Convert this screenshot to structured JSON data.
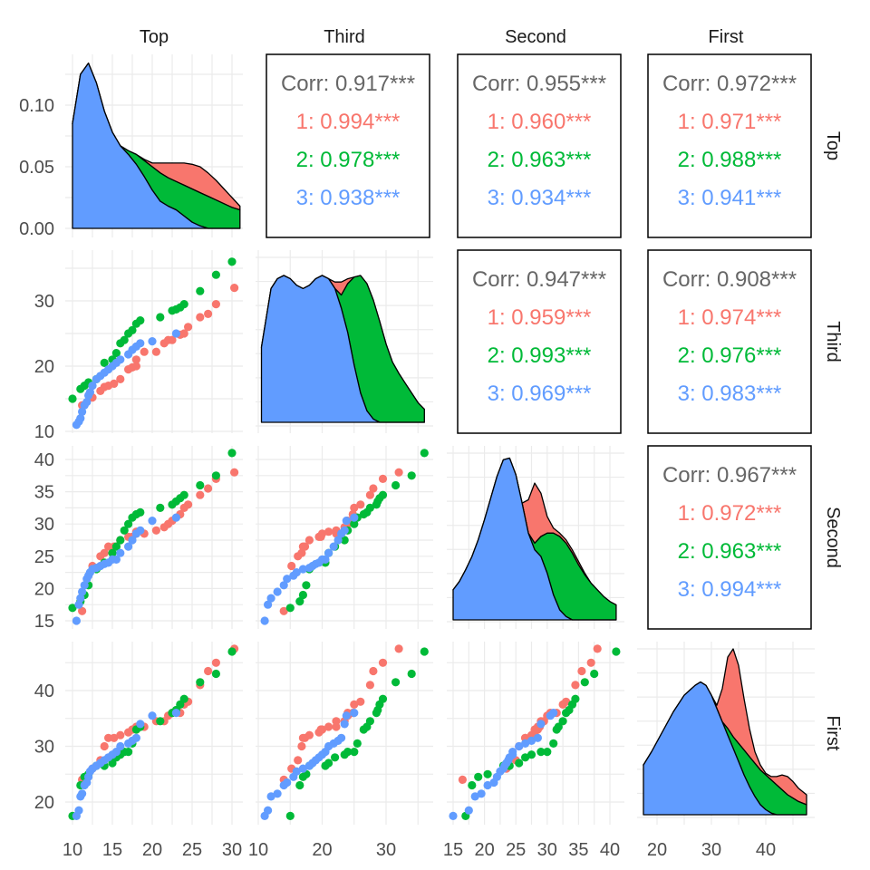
{
  "chart_data": {
    "type": "scatter",
    "title": "",
    "description": "Pairs plot (scatterplot matrix) of four variables colored by group, with stacked densities on the diagonal and correlation text in upper panels",
    "variables": [
      "Top",
      "Third",
      "Second",
      "First"
    ],
    "groups": [
      {
        "name": "1",
        "color": "#F8766D"
      },
      {
        "name": "2",
        "color": "#00BA38"
      },
      {
        "name": "3",
        "color": "#619CFF"
      }
    ],
    "axes": {
      "Top": {
        "range": [
          9.5,
          31.5
        ],
        "ticks": [
          10,
          15,
          20,
          25,
          30
        ]
      },
      "Third": {
        "range": [
          8.5,
          36.5
        ],
        "ticks": [
          10,
          20,
          30
        ]
      },
      "Second": {
        "range": [
          14,
          42
        ],
        "ticks": [
          15,
          20,
          25,
          30,
          35,
          40
        ]
      },
      "First": {
        "range": [
          16,
          49
        ],
        "ticks": [
          20,
          30,
          40
        ]
      }
    },
    "density_axis": {
      "label_ticks": [
        "0.00",
        "0.05",
        "0.10"
      ],
      "values": [
        0,
        0.05,
        0.1
      ],
      "range": [
        0,
        0.145
      ]
    },
    "correlations": [
      {
        "row": "Top",
        "col": "Third",
        "overall": "Corr: 0.917***",
        "groups": [
          "1: 0.994***",
          "2: 0.978***",
          "3: 0.938***"
        ]
      },
      {
        "row": "Top",
        "col": "Second",
        "overall": "Corr: 0.955***",
        "groups": [
          "1: 0.960***",
          "2: 0.963***",
          "3: 0.934***"
        ]
      },
      {
        "row": "Top",
        "col": "First",
        "overall": "Corr: 0.972***",
        "groups": [
          "1: 0.971***",
          "2: 0.988***",
          "3: 0.941***"
        ]
      },
      {
        "row": "Third",
        "col": "Second",
        "overall": "Corr: 0.947***",
        "groups": [
          "1: 0.959***",
          "2: 0.993***",
          "3: 0.969***"
        ]
      },
      {
        "row": "Third",
        "col": "First",
        "overall": "Corr: 0.908***",
        "groups": [
          "1: 0.974***",
          "2: 0.976***",
          "3: 0.983***"
        ]
      },
      {
        "row": "Second",
        "col": "First",
        "overall": "Corr: 0.967***",
        "groups": [
          "1: 0.972***",
          "2: 0.963***",
          "3: 0.994***"
        ]
      }
    ],
    "points": {
      "1": [
        [
          11.2,
          14.0,
          16.5,
          24.0
        ],
        [
          12.5,
          15.2,
          23.5,
          26.0
        ],
        [
          13.5,
          16.2,
          25.0,
          27.5
        ],
        [
          14.0,
          16.8,
          25.5,
          30.0
        ],
        [
          14.5,
          17.0,
          26.5,
          31.5
        ],
        [
          15.2,
          17.3,
          26.5,
          31.5
        ],
        [
          16.0,
          18.0,
          27.5,
          32.0
        ],
        [
          17.0,
          19.5,
          28.0,
          32.5
        ],
        [
          17.5,
          19.8,
          28.0,
          33.0
        ],
        [
          18.0,
          20.0,
          28.5,
          33.0
        ],
        [
          18.0,
          21.0,
          28.8,
          33.5
        ],
        [
          19.0,
          22.2,
          28.5,
          33.5
        ],
        [
          20.5,
          22.2,
          29.0,
          34.5
        ],
        [
          21.5,
          23.5,
          29.5,
          34.5
        ],
        [
          22.0,
          24.0,
          30.0,
          35.5
        ],
        [
          22.5,
          24.0,
          30.5,
          36.0
        ],
        [
          23.5,
          24.8,
          31.5,
          36.0
        ],
        [
          24.0,
          25.0,
          32.5,
          37.5
        ],
        [
          24.5,
          26.0,
          33.0,
          38.0
        ],
        [
          26.0,
          27.5,
          34.5,
          41.0
        ],
        [
          27.0,
          28.0,
          35.5,
          43.5
        ],
        [
          28.0,
          29.5,
          37.0,
          45.0
        ],
        [
          30.3,
          32.0,
          38.0,
          47.5
        ]
      ],
      "2": [
        [
          10.0,
          15.0,
          17.0,
          17.5
        ],
        [
          11.0,
          16.5,
          18.0,
          23.0
        ],
        [
          11.5,
          17.0,
          19.0,
          24.5
        ],
        [
          12.0,
          17.5,
          20.5,
          25.0
        ],
        [
          13.0,
          18.0,
          23.0,
          26.5
        ],
        [
          14.0,
          20.5,
          24.0,
          26.5
        ],
        [
          15.0,
          21.0,
          25.5,
          27.0
        ],
        [
          15.5,
          22.0,
          26.5,
          28.0
        ],
        [
          16.0,
          23.5,
          27.5,
          28.5
        ],
        [
          16.5,
          24.0,
          29.0,
          29.0
        ],
        [
          17.0,
          25.0,
          30.0,
          29.0
        ],
        [
          17.5,
          25.5,
          31.0,
          30.5
        ],
        [
          18.0,
          26.5,
          31.5,
          33.0
        ],
        [
          18.5,
          27.0,
          31.8,
          33.5
        ],
        [
          21.0,
          27.5,
          32.5,
          34.5
        ],
        [
          22.5,
          28.5,
          33.0,
          36.0
        ],
        [
          23.0,
          28.7,
          33.5,
          36.5
        ],
        [
          23.5,
          29.0,
          34.0,
          37.5
        ],
        [
          24.0,
          29.5,
          34.5,
          38.5
        ],
        [
          26.0,
          31.5,
          36.0,
          41.5
        ],
        [
          28.0,
          34.0,
          37.5,
          43.0
        ],
        [
          30.0,
          36.0,
          41.0,
          47.0
        ]
      ],
      "3": [
        [
          10.5,
          11.0,
          15.0,
          17.5
        ],
        [
          10.8,
          11.5,
          17.5,
          18.5
        ],
        [
          11.0,
          12.0,
          18.5,
          21.0
        ],
        [
          11.2,
          13.0,
          19.5,
          21.5
        ],
        [
          11.5,
          14.0,
          20.5,
          23.0
        ],
        [
          11.8,
          14.5,
          21.5,
          23.5
        ],
        [
          12.0,
          15.5,
          22.0,
          24.5
        ],
        [
          12.2,
          16.0,
          22.5,
          25.5
        ],
        [
          12.5,
          17.0,
          23.0,
          26.0
        ],
        [
          13.0,
          18.0,
          23.2,
          26.5
        ],
        [
          13.5,
          18.5,
          23.5,
          27.0
        ],
        [
          14.0,
          19.0,
          23.8,
          27.5
        ],
        [
          14.5,
          19.5,
          24.0,
          28.0
        ],
        [
          15.0,
          20.0,
          24.5,
          28.5
        ],
        [
          15.5,
          20.5,
          24.5,
          29.0
        ],
        [
          16.0,
          21.0,
          25.5,
          30.0
        ],
        [
          17.0,
          21.8,
          26.5,
          30.5
        ],
        [
          17.5,
          22.5,
          27.5,
          31.0
        ],
        [
          18.0,
          23.0,
          28.5,
          31.5
        ],
        [
          18.5,
          23.5,
          29.0,
          34.0
        ],
        [
          20.0,
          23.8,
          30.5,
          35.5
        ],
        [
          23.0,
          25.0,
          31.0,
          36.0
        ]
      ]
    },
    "densities": {
      "Top": {
        "x": [
          10,
          11,
          12,
          13,
          14,
          15,
          16,
          17,
          18,
          19,
          20,
          21,
          22,
          23,
          24,
          25,
          26,
          27,
          28,
          29,
          30,
          31
        ],
        "blue_top": [
          0.085,
          0.125,
          0.134,
          0.118,
          0.095,
          0.078,
          0.067,
          0.06,
          0.052,
          0.042,
          0.031,
          0.022,
          0.018,
          0.015,
          0.01,
          0.005,
          0.002,
          0.0,
          0.0,
          0.0,
          0.0,
          0.0
        ],
        "green_top": [
          0.085,
          0.125,
          0.134,
          0.118,
          0.095,
          0.078,
          0.067,
          0.063,
          0.06,
          0.055,
          0.05,
          0.045,
          0.041,
          0.038,
          0.035,
          0.032,
          0.029,
          0.026,
          0.023,
          0.02,
          0.017,
          0.015
        ],
        "red_top": [
          0.085,
          0.125,
          0.134,
          0.118,
          0.095,
          0.078,
          0.067,
          0.063,
          0.06,
          0.056,
          0.053,
          0.053,
          0.053,
          0.053,
          0.053,
          0.052,
          0.05,
          0.045,
          0.039,
          0.032,
          0.025,
          0.018
        ]
      },
      "Third": {
        "x": [
          10.5,
          12,
          13,
          14,
          15,
          16,
          17,
          18,
          19,
          20,
          21,
          22,
          23,
          24,
          25,
          26,
          27,
          28,
          29,
          30,
          31,
          32,
          33,
          34,
          35,
          36
        ],
        "blue_top": [
          0.46,
          0.82,
          0.88,
          0.9,
          0.88,
          0.84,
          0.82,
          0.84,
          0.88,
          0.9,
          0.88,
          0.82,
          0.7,
          0.55,
          0.35,
          0.18,
          0.07,
          0.02,
          0.0,
          0.0,
          0.0,
          0.0,
          0.0,
          0.0,
          0.0,
          0.0
        ],
        "green_top": [
          0.46,
          0.82,
          0.88,
          0.9,
          0.88,
          0.84,
          0.82,
          0.84,
          0.88,
          0.9,
          0.88,
          0.82,
          0.78,
          0.85,
          0.89,
          0.9,
          0.85,
          0.75,
          0.62,
          0.48,
          0.37,
          0.3,
          0.24,
          0.18,
          0.12,
          0.08
        ],
        "red_top": [
          0.46,
          0.82,
          0.88,
          0.9,
          0.88,
          0.84,
          0.82,
          0.84,
          0.88,
          0.9,
          0.88,
          0.86,
          0.86,
          0.88,
          0.89,
          0.9,
          0.85,
          0.75,
          0.62,
          0.48,
          0.37,
          0.3,
          0.24,
          0.18,
          0.12,
          0.08
        ],
        "scale_note": "relative density"
      },
      "Second": {
        "x": [
          15,
          16,
          17,
          18,
          19,
          20,
          21,
          22,
          23,
          24,
          25,
          26,
          27,
          28,
          29,
          30,
          31,
          32,
          33,
          34,
          35,
          36,
          37,
          38,
          39,
          40,
          41
        ],
        "blue_top": [
          0.18,
          0.23,
          0.3,
          0.38,
          0.48,
          0.6,
          0.73,
          0.86,
          0.96,
          0.97,
          0.87,
          0.7,
          0.52,
          0.42,
          0.38,
          0.28,
          0.15,
          0.06,
          0.02,
          0.0,
          0.0,
          0.0,
          0.0,
          0.0,
          0.0,
          0.0,
          0.0
        ],
        "green_top": [
          0.18,
          0.23,
          0.3,
          0.38,
          0.48,
          0.6,
          0.73,
          0.86,
          0.96,
          0.97,
          0.87,
          0.7,
          0.52,
          0.46,
          0.5,
          0.52,
          0.52,
          0.5,
          0.46,
          0.4,
          0.33,
          0.27,
          0.22,
          0.18,
          0.14,
          0.11,
          0.09
        ],
        "red_top": [
          0.18,
          0.23,
          0.3,
          0.38,
          0.48,
          0.6,
          0.73,
          0.86,
          0.96,
          0.97,
          0.87,
          0.7,
          0.72,
          0.82,
          0.76,
          0.62,
          0.55,
          0.52,
          0.48,
          0.42,
          0.35,
          0.28,
          0.22,
          0.18,
          0.14,
          0.11,
          0.09
        ],
        "scale_note": "relative density"
      },
      "First": {
        "x": [
          17.5,
          19,
          21,
          23,
          25,
          27,
          28,
          29,
          30,
          31,
          32,
          33,
          34,
          35,
          36,
          37,
          38,
          39,
          40,
          41,
          42,
          43,
          44,
          45,
          46,
          47.5
        ],
        "blue_top": [
          0.3,
          0.38,
          0.5,
          0.62,
          0.72,
          0.78,
          0.8,
          0.78,
          0.72,
          0.64,
          0.56,
          0.48,
          0.4,
          0.32,
          0.24,
          0.17,
          0.11,
          0.06,
          0.03,
          0.01,
          0.0,
          0.0,
          0.0,
          0.0,
          0.0,
          0.0
        ],
        "green_top": [
          0.3,
          0.38,
          0.5,
          0.62,
          0.72,
          0.78,
          0.8,
          0.78,
          0.72,
          0.64,
          0.56,
          0.52,
          0.47,
          0.43,
          0.39,
          0.35,
          0.31,
          0.27,
          0.24,
          0.21,
          0.18,
          0.15,
          0.12,
          0.1,
          0.08,
          0.06
        ],
        "red_top": [
          0.3,
          0.38,
          0.5,
          0.62,
          0.72,
          0.78,
          0.8,
          0.78,
          0.72,
          0.66,
          0.76,
          0.95,
          1.0,
          0.9,
          0.7,
          0.52,
          0.38,
          0.3,
          0.25,
          0.23,
          0.23,
          0.24,
          0.23,
          0.2,
          0.16,
          0.12
        ],
        "scale_note": "relative density"
      }
    },
    "facet_labels": {
      "columns": [
        "Top",
        "Third",
        "Second",
        "First"
      ],
      "rows": [
        "Top",
        "Third",
        "Second",
        "First"
      ]
    }
  }
}
